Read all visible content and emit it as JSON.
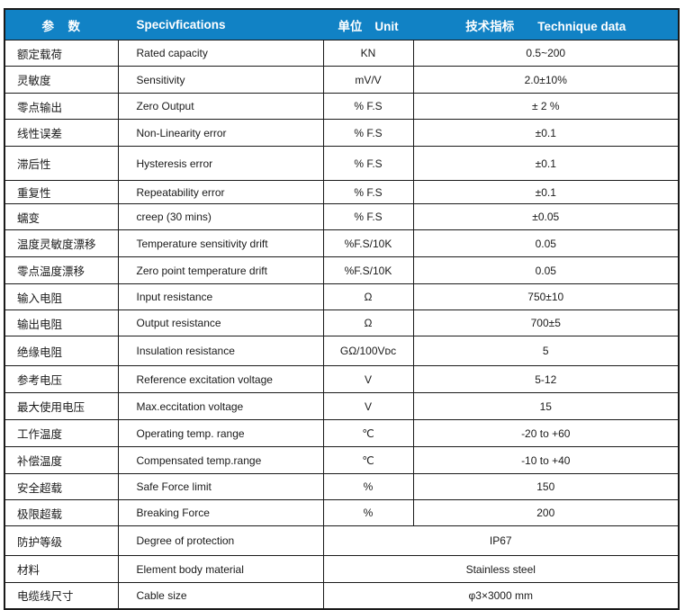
{
  "table": {
    "header": {
      "col_param": "参　数",
      "col_spec": "Specivfications",
      "col_unit_cn": "单位",
      "col_unit_en": "Unit",
      "col_data_cn": "技术指标",
      "col_data_en": "Technique data"
    },
    "rows": [
      {
        "cn": "额定载荷",
        "en": "Rated capacity",
        "unit": "KN",
        "value": "0.5~200"
      },
      {
        "cn": "灵敏度",
        "en": "Sensitivity",
        "unit": "mV/V",
        "value": "2.0±10%"
      },
      {
        "cn": "零点输出",
        "en": "Zero Output",
        "unit": "% F.S",
        "value": "± 2 %"
      },
      {
        "cn": "线性误差",
        "en": "Non-Linearity error",
        "unit": "% F.S",
        "value": "±0.1"
      },
      {
        "cn": "滞后性",
        "en": "Hysteresis error",
        "unit": "% F.S",
        "value": "±0.1"
      },
      {
        "cn": "重复性",
        "en": "Repeatability error",
        "unit": "% F.S",
        "value": "±0.1"
      },
      {
        "cn": "蠕变",
        "en": "creep (30 mins)",
        "unit": "% F.S",
        "value": "±0.05"
      },
      {
        "cn": "温度灵敏度漂移",
        "en": "Temperature sensitivity drift",
        "unit": "%F.S/10K",
        "value": "0.05"
      },
      {
        "cn": "零点温度漂移",
        "en": "Zero point temperature drift",
        "unit": "%F.S/10K",
        "value": "0.05"
      },
      {
        "cn": "输入电阻",
        "en": "Input resistance",
        "unit": "Ω",
        "value": "750±10"
      },
      {
        "cn": "输出电阻",
        "en": "Output resistance",
        "unit": "Ω",
        "value": "700±5"
      },
      {
        "cn": "绝缘电阻",
        "en": "Insulation resistance",
        "unit": "GΩ/100Vᴅᴄ",
        "value": "5"
      },
      {
        "cn": "参考电压",
        "en": "Reference excitation voltage",
        "unit": "V",
        "value": "5-12"
      },
      {
        "cn": "最大使用电压",
        "en": "Max.eccitation voltage",
        "unit": "V",
        "value": "15"
      },
      {
        "cn": "工作温度",
        "en": "Operating temp. range",
        "unit": "℃",
        "value": "-20 to +60"
      },
      {
        "cn": "补偿温度",
        "en": "Compensated temp.range",
        "unit": "℃",
        "value": "-10 to +40"
      },
      {
        "cn": "安全超载",
        "en": "Safe Force limit",
        "unit": "%",
        "value": "150"
      },
      {
        "cn": "极限超载",
        "en": "Breaking Force",
        "unit": "%",
        "value": "200"
      },
      {
        "cn": "防护等级",
        "en": "Degree of protection",
        "merged": true,
        "value": "IP67"
      },
      {
        "cn": "材料",
        "en": "Element body material",
        "merged": true,
        "value": "Stainless steel"
      },
      {
        "cn": "电缆线尺寸",
        "en": "Cable size",
        "merged": true,
        "value": "φ3×3000 mm"
      }
    ]
  },
  "colors": {
    "header_bg": "#1182c5",
    "header_text": "#ffffff",
    "border": "#1a1a1a",
    "body_text": "#1a1a1a"
  }
}
